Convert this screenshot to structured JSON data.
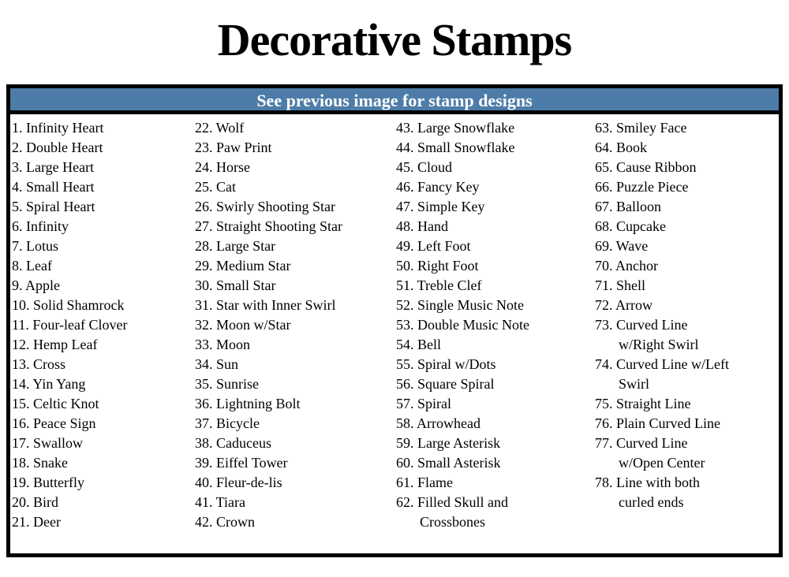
{
  "page": {
    "title": "Decorative Stamps"
  },
  "banner": {
    "text": "See previous image for stamp designs"
  },
  "colors": {
    "banner_bg": "#4d7ca8",
    "banner_text": "#ffffff",
    "border": "#000000",
    "text": "#000000",
    "page_bg": "#ffffff"
  },
  "list": {
    "columns": [
      {
        "items": [
          "1. Infinity Heart",
          "2. Double Heart",
          "3. Large Heart",
          "4. Small Heart",
          "5. Spiral Heart",
          "6. Infinity",
          "7. Lotus",
          "8. Leaf",
          "9. Apple",
          "10. Solid Shamrock",
          "11. Four-leaf Clover",
          "12. Hemp Leaf",
          "13. Cross",
          "14. Yin Yang",
          "15. Celtic Knot",
          "16. Peace Sign",
          "17. Swallow",
          "18. Snake",
          "19. Butterfly",
          "20. Bird",
          "21. Deer"
        ]
      },
      {
        "items": [
          "22. Wolf",
          "23. Paw Print",
          "24. Horse",
          "25. Cat",
          "26. Swirly Shooting Star",
          "27. Straight Shooting Star",
          "28. Large Star",
          "29. Medium Star",
          "30. Small Star",
          "31. Star with Inner Swirl",
          "32. Moon w/Star",
          "33. Moon",
          "34. Sun",
          "35. Sunrise",
          "36. Lightning Bolt",
          "37. Bicycle",
          "38. Caduceus",
          "39. Eiffel Tower",
          "40. Fleur-de-lis",
          "41. Tiara",
          "42. Crown"
        ]
      },
      {
        "items": [
          "43. Large Snowflake",
          "44. Small Snowflake",
          "45. Cloud",
          "46. Fancy Key",
          "47. Simple Key",
          "48. Hand",
          "49. Left Foot",
          "50. Right Foot",
          "51. Treble Clef",
          "52. Single Music Note",
          "53. Double Music Note",
          "54. Bell",
          "55. Spiral w/Dots",
          "56. Square Spiral",
          "57. Spiral",
          "58. Arrowhead",
          "59. Large Asterisk",
          "60. Small Asterisk",
          "61. Flame",
          "62. Filled Skull and\nCrossbones"
        ]
      },
      {
        "items": [
          "63. Smiley Face",
          "64. Book",
          "65. Cause Ribbon",
          "66. Puzzle Piece",
          "67. Balloon",
          "68. Cupcake",
          "69. Wave",
          "70. Anchor",
          "71. Shell",
          "72. Arrow",
          "73. Curved Line\nw/Right Swirl",
          "74. Curved Line w/Left\nSwirl",
          "75. Straight Line",
          "76. Plain Curved Line",
          "77. Curved Line\nw/Open  Center",
          "78. Line with both\ncurled ends"
        ]
      }
    ]
  }
}
